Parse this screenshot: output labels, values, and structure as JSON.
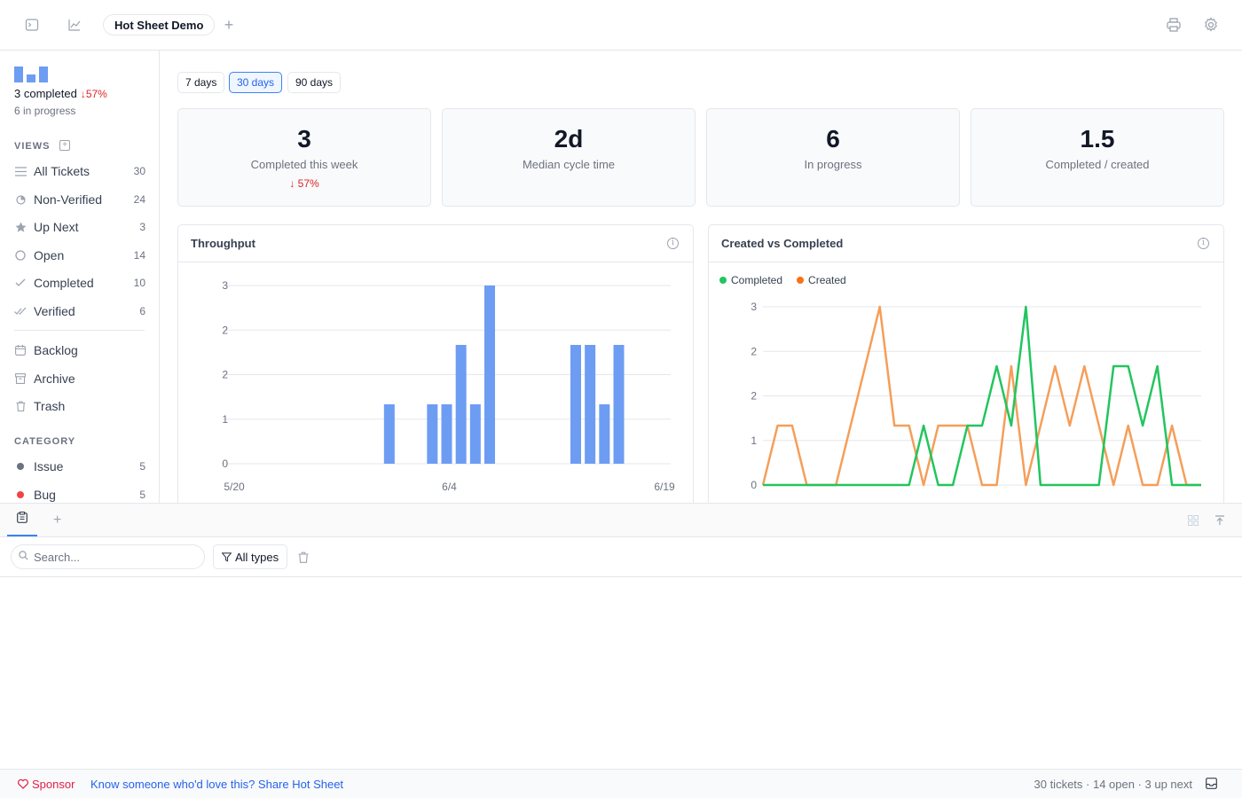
{
  "topbar": {
    "tab_title": "Hot Sheet Demo"
  },
  "sidebar": {
    "summary": {
      "completed": "3 completed",
      "change": "↓57%",
      "in_progress": "6 in progress",
      "mini_bars": [
        0.9,
        0.45,
        0.9
      ]
    },
    "views_label": "VIEWS",
    "views": [
      {
        "label": "All Tickets",
        "count": "30",
        "icon": "list-icon"
      },
      {
        "label": "Non-Verified",
        "count": "24",
        "icon": "half-circle-icon"
      },
      {
        "label": "Up Next",
        "count": "3",
        "icon": "star-icon"
      },
      {
        "label": "Open",
        "count": "14",
        "icon": "circle-icon"
      },
      {
        "label": "Completed",
        "count": "10",
        "icon": "check-icon"
      },
      {
        "label": "Verified",
        "count": "6",
        "icon": "double-check-icon"
      }
    ],
    "other": [
      {
        "label": "Backlog",
        "icon": "calendar-icon"
      },
      {
        "label": "Archive",
        "icon": "archive-icon"
      },
      {
        "label": "Trash",
        "icon": "trash-icon"
      }
    ],
    "category_label": "CATEGORY",
    "categories": [
      {
        "label": "Issue",
        "count": "5",
        "color": "#6b7280"
      },
      {
        "label": "Bug",
        "count": "5",
        "color": "#ef4444"
      }
    ]
  },
  "ranges": {
    "options": [
      "7 days",
      "30 days",
      "90 days"
    ],
    "active": "30 days"
  },
  "stats": [
    {
      "value": "3",
      "label": "Completed this week",
      "change": "↓ 57%"
    },
    {
      "value": "2d",
      "label": "Median cycle time",
      "change": ""
    },
    {
      "value": "6",
      "label": "In progress",
      "change": ""
    },
    {
      "value": "1.5",
      "label": "Completed / created",
      "change": ""
    }
  ],
  "chart_data": [
    {
      "type": "bar",
      "title": "Throughput",
      "y_ticks": [
        "0",
        "1",
        "2",
        "2",
        "3"
      ],
      "ylim": [
        0,
        3
      ],
      "x_tick_labels": [
        {
          "label": "5/20",
          "index": 0
        },
        {
          "label": "6/4",
          "index": 15
        },
        {
          "label": "6/19",
          "index": 30
        }
      ],
      "values": [
        0,
        0,
        0,
        0,
        0,
        0,
        0,
        0,
        0,
        0,
        0,
        1,
        0,
        0,
        1,
        1,
        2,
        1,
        3,
        0,
        0,
        0,
        0,
        0,
        2,
        2,
        1,
        2,
        0,
        0,
        0
      ],
      "color": "#6d9cf3"
    },
    {
      "type": "line",
      "title": "Created vs Completed",
      "y_ticks": [
        "0",
        "1",
        "2",
        "2",
        "3"
      ],
      "ylim": [
        0,
        3
      ],
      "legend_position": "top-left",
      "series": [
        {
          "name": "Completed",
          "color": "#22c55e",
          "values": [
            0,
            0,
            0,
            0,
            0,
            0,
            0,
            0,
            0,
            0,
            0,
            1,
            0,
            0,
            1,
            1,
            2,
            1,
            3,
            0,
            0,
            0,
            0,
            0,
            2,
            2,
            1,
            2,
            0,
            0,
            0
          ]
        },
        {
          "name": "Created",
          "color": "#f59e59",
          "values": [
            0,
            1,
            1,
            0,
            0,
            0,
            1,
            2,
            3,
            1,
            1,
            0,
            1,
            1,
            1,
            0,
            0,
            2,
            0,
            1,
            2,
            1,
            2,
            1,
            0,
            1,
            0,
            0,
            1,
            0,
            0
          ]
        }
      ]
    }
  ],
  "bottom": {
    "search_placeholder": "Search...",
    "filter_label": "All types"
  },
  "footer": {
    "sponsor_label": "Sponsor",
    "share_label": "Know someone who'd love this? Share Hot Sheet",
    "status": "30 tickets · 14 open · 3 up next"
  }
}
